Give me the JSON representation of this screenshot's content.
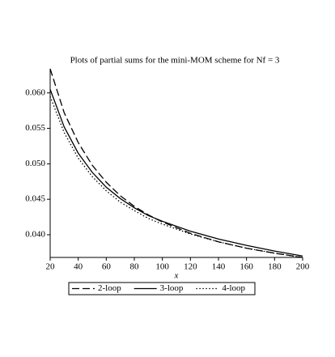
{
  "chart_data": {
    "type": "line",
    "title": "Plots of partial sums for the mini-MOM scheme for Nf = 3",
    "x_label": "x",
    "x": [
      20,
      30,
      40,
      50,
      60,
      70,
      80,
      90,
      100,
      120,
      140,
      160,
      180,
      200
    ],
    "series": [
      {
        "name": "2-loop",
        "color": "#000000",
        "dash": "dashed",
        "values": [
          0.0634,
          0.0572,
          0.053,
          0.0498,
          0.0474,
          0.0455,
          0.044,
          0.0428,
          0.0418,
          0.0402,
          0.039,
          0.0381,
          0.0374,
          0.0368
        ]
      },
      {
        "name": "3-loop",
        "color": "#000000",
        "dash": "solid",
        "values": [
          0.0605,
          0.0552,
          0.0515,
          0.0488,
          0.0467,
          0.0451,
          0.0438,
          0.0427,
          0.0419,
          0.0405,
          0.0394,
          0.0385,
          0.0377,
          0.037
        ]
      },
      {
        "name": "4-loop",
        "color": "#000000",
        "dash": "dotted",
        "values": [
          0.0595,
          0.0544,
          0.0508,
          0.0482,
          0.0462,
          0.0446,
          0.0434,
          0.0423,
          0.0415,
          0.0401,
          0.039,
          0.0381,
          0.0374,
          0.0368
        ]
      }
    ],
    "xlim": [
      20,
      200
    ],
    "xticks": [
      20,
      40,
      60,
      80,
      100,
      120,
      140,
      160,
      180,
      200
    ],
    "ylim": [
      0.0368,
      0.0634
    ],
    "yticks": [
      {
        "value": 0.04,
        "label": "0.040"
      },
      0.045,
      {
        "value": 0.05,
        "label": "0.050"
      },
      0.055,
      {
        "value": 0.06,
        "label": "0.060"
      }
    ],
    "legend": "bottom"
  }
}
